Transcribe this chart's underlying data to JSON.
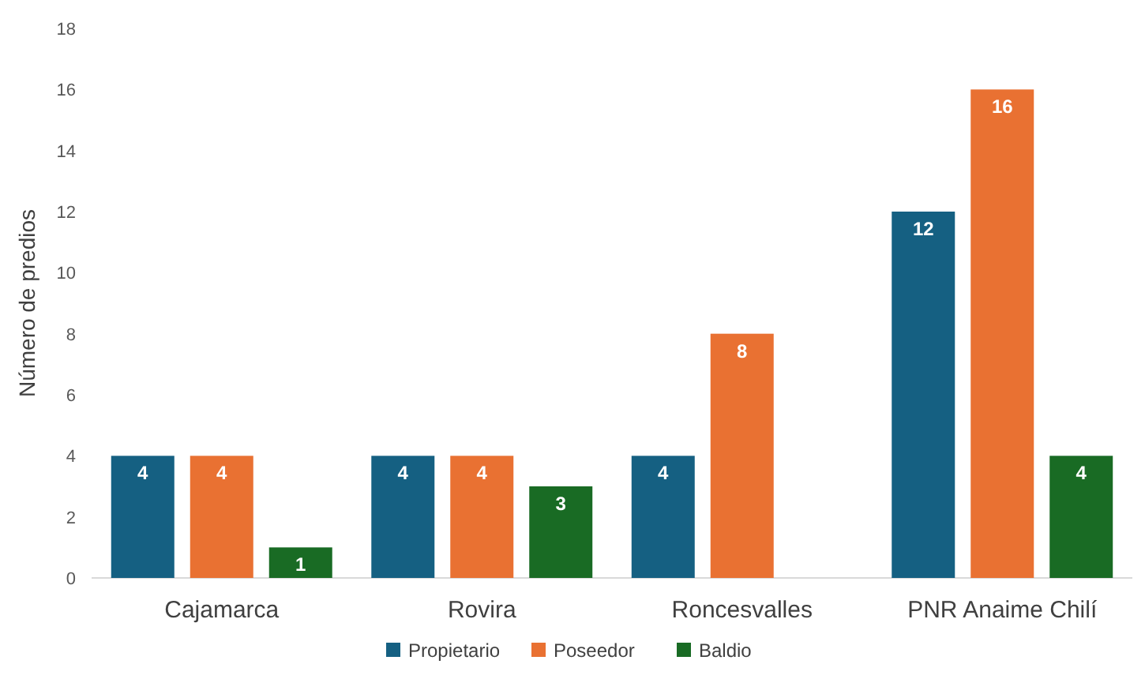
{
  "chart_data": {
    "type": "bar",
    "ylabel": "Número de predios",
    "categories": [
      "Cajamarca",
      "Rovira",
      "Roncesvalles",
      "PNR Anaime Chilí"
    ],
    "series": [
      {
        "name": "Propietario",
        "color": "#156082",
        "values": [
          4,
          4,
          4,
          12
        ]
      },
      {
        "name": "Poseedor",
        "color": "#e97132",
        "values": [
          4,
          4,
          8,
          16
        ]
      },
      {
        "name": "Baldio",
        "color": "#196b24",
        "values": [
          1,
          3,
          null,
          4
        ]
      }
    ],
    "ylim": [
      0,
      18
    ],
    "yticks": [
      0,
      2,
      4,
      6,
      8,
      10,
      12,
      14,
      16,
      18
    ],
    "grid": false,
    "legend": "bottom",
    "data_labels": true
  }
}
